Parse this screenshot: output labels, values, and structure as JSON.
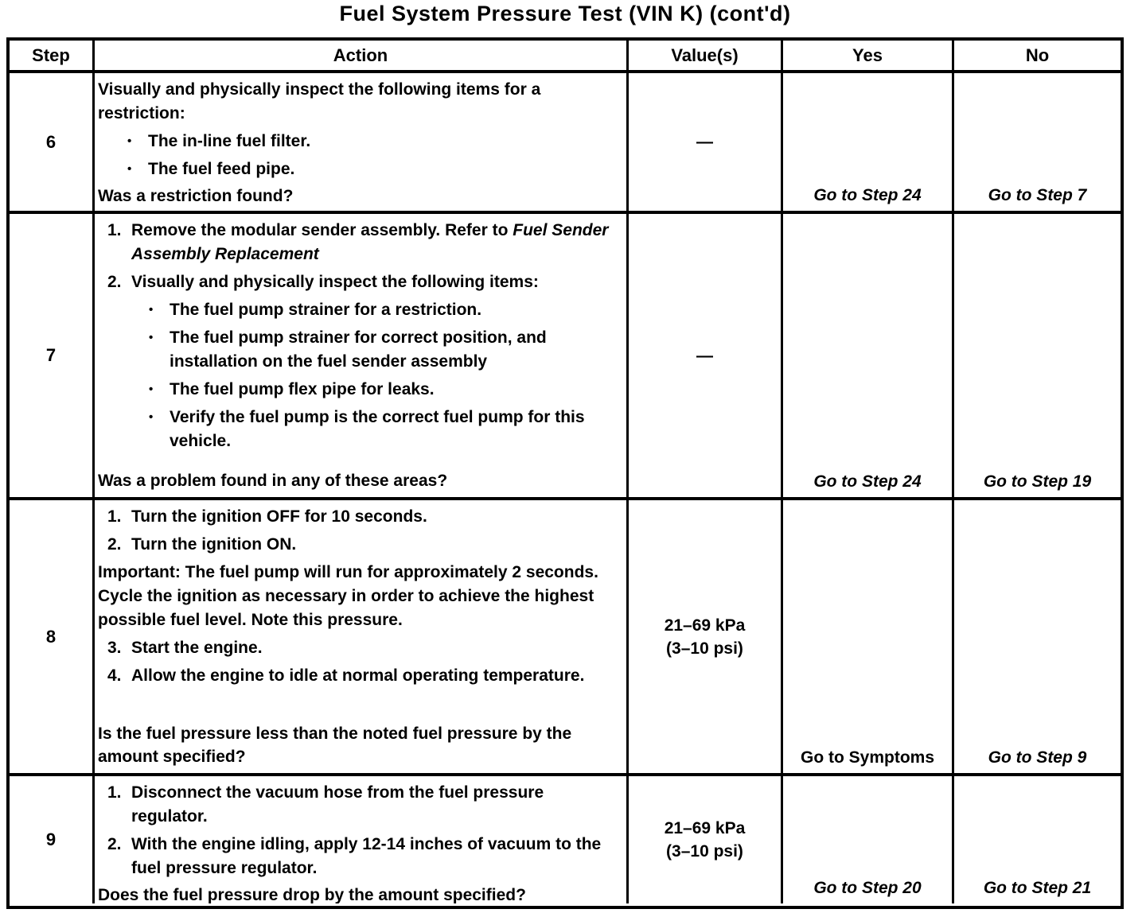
{
  "title": "Fuel System Pressure Test (VIN K) (cont'd)",
  "table": {
    "headers": [
      "Step",
      "Action",
      "Value(s)",
      "Yes",
      "No"
    ],
    "rows": [
      {
        "step": "6",
        "action_blocks": [
          {
            "type": "para",
            "text": "Visually and physically inspect the following items for a restriction:"
          },
          {
            "type": "bullet",
            "text": "The in-line fuel filter."
          },
          {
            "type": "bullet",
            "text": "The fuel feed pipe."
          }
        ],
        "question": "Was a restriction found?",
        "value_lines": [
          "—"
        ],
        "yes": {
          "text": "Go to Step 24",
          "italic": true
        },
        "no": {
          "text": "Go to Step 7",
          "italic": true
        }
      },
      {
        "step": "7",
        "action_blocks": [
          {
            "type": "num",
            "marker": "1.",
            "text": "Remove the modular sender assembly. Refer to ",
            "italic_text": "Fuel Sender Assembly Replacement"
          },
          {
            "type": "num",
            "marker": "2.",
            "text": "Visually and physically inspect the following items:"
          },
          {
            "type": "bullet",
            "text": "The fuel pump strainer for a restriction."
          },
          {
            "type": "bullet",
            "text": "The fuel pump strainer for correct position, and installation on the fuel sender assembly"
          },
          {
            "type": "bullet",
            "text": "The fuel pump flex pipe for leaks."
          },
          {
            "type": "bullet",
            "text": "Verify the fuel pump is the correct fuel pump for this vehicle."
          }
        ],
        "question": "Was a problem found in any of these areas?",
        "value_lines": [
          "—"
        ],
        "yes": {
          "text": "Go to Step 24",
          "italic": true
        },
        "no": {
          "text": "Go to Step 19",
          "italic": true
        }
      },
      {
        "step": "8",
        "action_blocks": [
          {
            "type": "num",
            "marker": "1.",
            "text": "Turn the ignition OFF for 10 seconds."
          },
          {
            "type": "num",
            "marker": "2.",
            "text": "Turn the ignition ON."
          },
          {
            "type": "important",
            "label": "Important:",
            "text": " The fuel pump will run for approximately 2 seconds. Cycle the ignition as necessary in order to achieve the highest possible fuel level. Note this pressure."
          },
          {
            "type": "num",
            "marker": "3.",
            "text": "Start the engine."
          },
          {
            "type": "num",
            "marker": "4.",
            "text": "Allow the engine to idle at normal operating temperature."
          }
        ],
        "question": "Is the fuel pressure less than the noted fuel pressure by the amount specified?",
        "value_lines": [
          "21–69 kPa",
          "(3–10 psi)"
        ],
        "yes": {
          "text": "Go to Symptoms",
          "italic": false
        },
        "no": {
          "text": "Go to Step 9",
          "italic": true
        }
      },
      {
        "step": "9",
        "action_blocks": [
          {
            "type": "num",
            "marker": "1.",
            "text": "Disconnect the vacuum hose from the fuel pressure regulator."
          },
          {
            "type": "num",
            "marker": "2.",
            "text": "With the engine idling, apply 12-14 inches of vacuum to the fuel pressure regulator."
          }
        ],
        "question": "Does the fuel pressure drop by the amount specified?",
        "value_lines": [
          "21–69 kPa",
          "(3–10 psi)"
        ],
        "yes": {
          "text": "Go to Step 20",
          "italic": true
        },
        "no": {
          "text": "Go to Step 21",
          "italic": true
        }
      }
    ]
  }
}
